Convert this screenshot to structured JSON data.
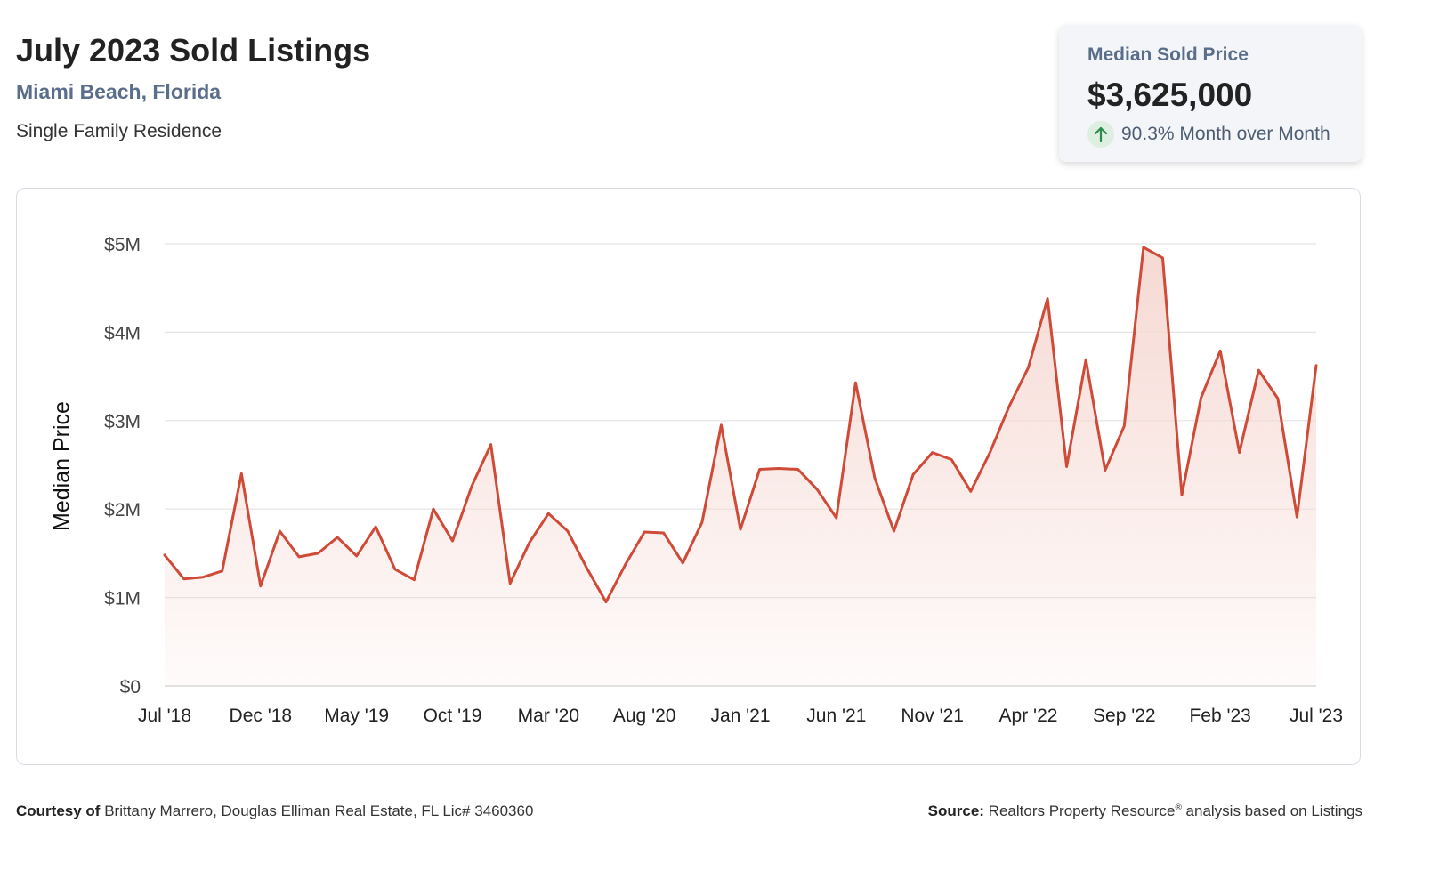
{
  "header": {
    "title": "July 2023 Sold Listings",
    "location": "Miami Beach, Florida",
    "property_type": "Single Family Residence"
  },
  "summary_card": {
    "label": "Median Sold Price",
    "value": "$3,625,000",
    "change_text": "90.3% Month over Month",
    "change_direction": "up",
    "icon": "arrow-up-icon"
  },
  "footer": {
    "courtesy_label": "Courtesy of",
    "courtesy_text": "Brittany Marrero, Douglas Elliman Real Estate, FL Lic# 3460360",
    "source_label": "Source:",
    "source_text_1": "Realtors Property Resource",
    "source_reg": "®",
    "source_text_2": " analysis based on Listings"
  },
  "colors": {
    "line": "#d04a38",
    "fill": "#f6d9d3",
    "grid": "#e3e3e3",
    "axis_text": "#444444",
    "accent_label": "#5a6e8c",
    "up_icon": "#2e8b4a"
  },
  "chart_data": {
    "type": "area",
    "ylabel": "Median Price",
    "xlabel": "",
    "ylim": [
      0,
      5000000
    ],
    "y_ticks": [
      0,
      1000000,
      2000000,
      3000000,
      4000000,
      5000000
    ],
    "y_tick_labels": [
      "$0",
      "$1M",
      "$2M",
      "$3M",
      "$4M",
      "$5M"
    ],
    "x_tick_labels": [
      "Jul '18",
      "Dec '18",
      "May '19",
      "Oct '19",
      "Mar '20",
      "Aug '20",
      "Jan '21",
      "Jun '21",
      "Nov '21",
      "Apr '22",
      "Sep '22",
      "Feb '23",
      "Jul '23"
    ],
    "x_tick_every": 5,
    "grid": true,
    "legend": "none",
    "series": [
      {
        "x_start": "Jul 2018",
        "x_end": "Jul 2023",
        "interval": "month",
        "values": [
          1480000,
          1210000,
          1230000,
          1300000,
          2400000,
          1130000,
          1750000,
          1460000,
          1500000,
          1680000,
          1470000,
          1800000,
          1320000,
          1200000,
          2000000,
          1640000,
          2260000,
          2730000,
          1160000,
          1620000,
          1950000,
          1750000,
          1330000,
          950000,
          1370000,
          1740000,
          1730000,
          1390000,
          1850000,
          2950000,
          1770000,
          2450000,
          2460000,
          2450000,
          2220000,
          1900000,
          3430000,
          2350000,
          1750000,
          2390000,
          2640000,
          2560000,
          2200000,
          2640000,
          3160000,
          3600000,
          4380000,
          2480000,
          3690000,
          2440000,
          2940000,
          4960000,
          4840000,
          2160000,
          3260000,
          3790000,
          2640000,
          3570000,
          3250000,
          1910000,
          3625000
        ]
      }
    ]
  }
}
